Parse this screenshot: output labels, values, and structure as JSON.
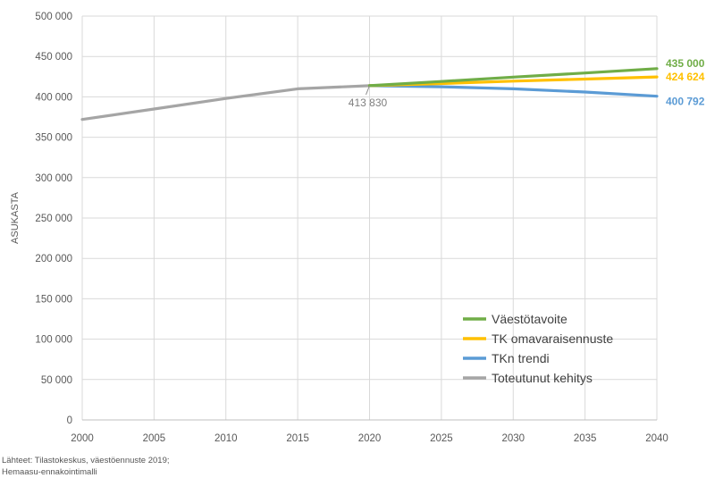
{
  "chart_data": {
    "type": "line",
    "ylabel": "ASUKASTA",
    "xlim": [
      2000,
      2040
    ],
    "ylim": [
      0,
      500000
    ],
    "grid": true,
    "legend_position": "bottom-right",
    "x_ticks": [
      "2000",
      "2005",
      "2010",
      "2015",
      "2020",
      "2025",
      "2030",
      "2035",
      "2040"
    ],
    "y_ticks": [
      {
        "value": 0,
        "label": "0"
      },
      {
        "value": 50000,
        "label": "50 000"
      },
      {
        "value": 100000,
        "label": "100 000"
      },
      {
        "value": 150000,
        "label": "150 000"
      },
      {
        "value": 200000,
        "label": "200 000"
      },
      {
        "value": 250000,
        "label": "250 000"
      },
      {
        "value": 300000,
        "label": "300 000"
      },
      {
        "value": 350000,
        "label": "350 000"
      },
      {
        "value": 400000,
        "label": "400 000"
      },
      {
        "value": 450000,
        "label": "450 000"
      },
      {
        "value": 500000,
        "label": "500 000"
      }
    ],
    "series": [
      {
        "name": "Väestötavoite",
        "color": "#70ad47",
        "x": [
          2020,
          2025,
          2030,
          2035,
          2040
        ],
        "y": [
          413830,
          419000,
          424500,
          429500,
          435000
        ],
        "end_label": "435 000"
      },
      {
        "name": "TK omavaraisennuste",
        "color": "#ffc000",
        "x": [
          2020,
          2025,
          2030,
          2035,
          2040
        ],
        "y": [
          413830,
          416500,
          419500,
          422000,
          424624
        ],
        "end_label": "424 624"
      },
      {
        "name": "TKn trendi",
        "color": "#5b9bd5",
        "x": [
          2020,
          2025,
          2030,
          2035,
          2040
        ],
        "y": [
          413830,
          412500,
          410000,
          406000,
          400792
        ],
        "end_label": "400 792"
      },
      {
        "name": "Toteutunut kehitys",
        "color": "#a5a5a5",
        "x": [
          2000,
          2005,
          2010,
          2015,
          2020
        ],
        "y": [
          372000,
          385000,
          398000,
          410000,
          413830
        ]
      }
    ],
    "annotations": [
      {
        "text": "413 830",
        "x": 2020,
        "y": 413830
      }
    ]
  },
  "source": {
    "line1": "Lähteet: Tilastokeskus, väestöennuste 2019;",
    "line2": "Hemaasu-ennakointimalli"
  }
}
